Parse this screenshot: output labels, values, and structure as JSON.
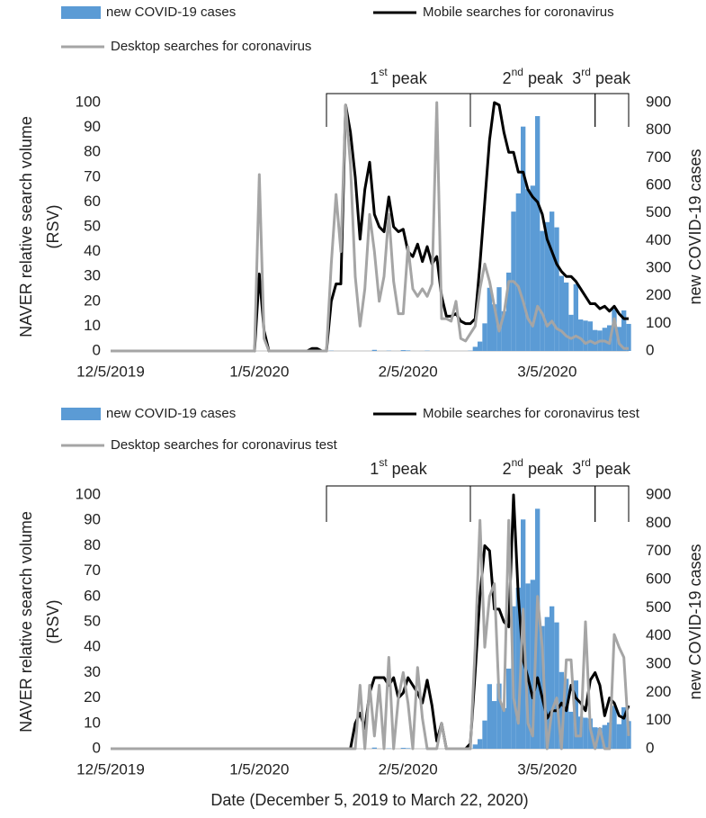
{
  "chart_data": [
    {
      "type": "combo",
      "ylabel": [
        "NAVER relative search volume",
        "(RSV)"
      ],
      "y2label": "new COVID-19 cases",
      "x": [
        "12/5/2019",
        "12/6/2019",
        "12/7/2019",
        "12/8/2019",
        "12/9/2019",
        "12/10/2019",
        "12/11/2019",
        "12/12/2019",
        "12/13/2019",
        "12/14/2019",
        "12/15/2019",
        "12/16/2019",
        "12/17/2019",
        "12/18/2019",
        "12/19/2019",
        "12/20/2019",
        "12/21/2019",
        "12/22/2019",
        "12/23/2019",
        "12/24/2019",
        "12/25/2019",
        "12/26/2019",
        "12/27/2019",
        "12/28/2019",
        "12/29/2019",
        "12/30/2019",
        "12/31/2019",
        "1/1/2020",
        "1/2/2020",
        "1/3/2020",
        "1/4/2020",
        "1/5/2020",
        "1/6/2020",
        "1/7/2020",
        "1/8/2020",
        "1/9/2020",
        "1/10/2020",
        "1/11/2020",
        "1/12/2020",
        "1/13/2020",
        "1/14/2020",
        "1/15/2020",
        "1/16/2020",
        "1/17/2020",
        "1/18/2020",
        "1/19/2020",
        "1/20/2020",
        "1/21/2020",
        "1/22/2020",
        "1/23/2020",
        "1/24/2020",
        "1/25/2020",
        "1/26/2020",
        "1/27/2020",
        "1/28/2020",
        "1/29/2020",
        "1/30/2020",
        "1/31/2020",
        "2/1/2020",
        "2/2/2020",
        "2/3/2020",
        "2/4/2020",
        "2/5/2020",
        "2/6/2020",
        "2/7/2020",
        "2/8/2020",
        "2/9/2020",
        "2/10/2020",
        "2/11/2020",
        "2/12/2020",
        "2/13/2020",
        "2/14/2020",
        "2/15/2020",
        "2/16/2020",
        "2/17/2020",
        "2/18/2020",
        "2/19/2020",
        "2/20/2020",
        "2/21/2020",
        "2/22/2020",
        "2/23/2020",
        "2/24/2020",
        "2/25/2020",
        "2/26/2020",
        "2/27/2020",
        "2/28/2020",
        "2/29/2020",
        "3/1/2020",
        "3/2/2020",
        "3/3/2020",
        "3/4/2020",
        "3/5/2020",
        "3/6/2020",
        "3/7/2020",
        "3/8/2020",
        "3/9/2020",
        "3/10/2020",
        "3/11/2020",
        "3/12/2020",
        "3/13/2020",
        "3/14/2020",
        "3/15/2020",
        "3/16/2020",
        "3/17/2020",
        "3/18/2020",
        "3/19/2020",
        "3/20/2020",
        "3/21/2020",
        "3/22/2020"
      ],
      "xlim": [
        "12/5/2019",
        "3/22/2020"
      ],
      "xticks": [
        "12/5/2019",
        "1/5/2020",
        "2/5/2020",
        "3/5/2020"
      ],
      "ylim": [
        0,
        100
      ],
      "yticks": [
        0,
        10,
        20,
        30,
        40,
        50,
        60,
        70,
        80,
        90,
        100
      ],
      "y2lim": [
        0,
        900
      ],
      "y2ticks": [
        0,
        100,
        200,
        300,
        400,
        500,
        600,
        700,
        800,
        900
      ],
      "series": [
        {
          "name": "new COVID-19 cases",
          "type": "bar",
          "axis": "y2",
          "color": "#5b9bd5",
          "values": [
            0,
            0,
            0,
            0,
            0,
            0,
            0,
            0,
            0,
            0,
            0,
            0,
            0,
            0,
            0,
            0,
            0,
            0,
            0,
            0,
            0,
            0,
            0,
            0,
            0,
            0,
            0,
            0,
            0,
            0,
            0,
            0,
            0,
            0,
            0,
            0,
            0,
            0,
            0,
            0,
            0,
            0,
            0,
            0,
            0,
            0,
            1,
            0,
            0,
            0,
            0,
            0,
            0,
            0,
            0,
            4,
            0,
            0,
            1,
            0,
            0,
            3,
            2,
            0,
            0,
            0,
            1,
            0,
            0,
            0,
            0,
            0,
            0,
            0,
            0,
            1,
            15,
            34,
            100,
            229,
            169,
            231,
            144,
            284,
            505,
            571,
            813,
            586,
            599,
            851,
            435,
            467,
            505,
            448,
            272,
            248,
            131,
            242,
            114,
            110,
            107,
            76,
            74,
            84,
            93,
            152,
            87,
            147,
            98
          ]
        },
        {
          "name": "Mobile searches for coronavirus",
          "type": "line",
          "color": "#000000",
          "values": [
            0,
            0,
            0,
            0,
            0,
            0,
            0,
            0,
            0,
            0,
            0,
            0,
            0,
            0,
            0,
            0,
            0,
            0,
            0,
            0,
            0,
            0,
            0,
            0,
            0,
            0,
            0,
            0,
            0,
            0,
            0,
            31,
            8,
            0,
            0,
            0,
            0,
            0,
            0,
            0,
            0,
            0,
            1,
            1,
            0,
            0,
            20,
            27,
            27,
            99,
            88,
            70,
            45,
            65,
            76,
            55,
            50,
            48,
            62,
            50,
            48,
            49,
            40,
            38,
            43,
            36,
            42,
            35,
            38,
            22,
            14,
            14,
            15,
            12,
            11,
            11,
            13,
            35,
            60,
            85,
            100,
            99,
            88,
            80,
            80,
            72,
            72,
            65,
            62,
            60,
            55,
            45,
            40,
            35,
            32,
            30,
            30,
            28,
            25,
            22,
            19,
            19,
            17,
            18,
            16,
            18,
            15,
            13,
            13
          ]
        },
        {
          "name": "Desktop searches for coronavirus",
          "type": "line",
          "color": "#a5a5a5",
          "values": [
            0,
            0,
            0,
            0,
            0,
            0,
            0,
            0,
            0,
            0,
            0,
            0,
            0,
            0,
            0,
            0,
            0,
            0,
            0,
            0,
            0,
            0,
            0,
            0,
            0,
            0,
            0,
            0,
            0,
            0,
            0,
            71,
            5,
            0,
            0,
            0,
            0,
            0,
            0,
            0,
            0,
            0,
            0,
            0,
            0,
            0,
            35,
            63,
            40,
            99,
            75,
            30,
            10,
            25,
            55,
            40,
            20,
            30,
            55,
            28,
            15,
            15,
            42,
            25,
            22,
            25,
            22,
            27,
            100,
            13,
            13,
            12,
            20,
            5,
            4,
            7,
            10,
            25,
            35,
            28,
            18,
            8,
            15,
            28,
            28,
            26,
            20,
            13,
            10,
            18,
            15,
            10,
            12,
            9,
            8,
            6,
            5,
            6,
            5,
            3,
            4,
            3,
            4,
            4,
            3,
            13,
            3,
            1,
            1
          ]
        }
      ],
      "annotations": [
        {
          "ordinal": "1",
          "suffix": "st",
          "word": "peak",
          "start": "1/19/2020",
          "end": "2/18/2020"
        },
        {
          "ordinal": "2",
          "suffix": "nd",
          "word": "peak",
          "start": "2/18/2020",
          "end": "3/15/2020"
        },
        {
          "ordinal": "3",
          "suffix": "rd",
          "word": "peak",
          "start": "3/15/2020",
          "end": "3/22/2020"
        }
      ]
    },
    {
      "type": "combo",
      "ylabel": [
        "NAVER relative search volume",
        "(RSV)"
      ],
      "y2label": "new COVID-19 cases",
      "xlabel": "Date (December 5, 2019 to March 22, 2020)",
      "x": [
        "12/5/2019",
        "12/6/2019",
        "12/7/2019",
        "12/8/2019",
        "12/9/2019",
        "12/10/2019",
        "12/11/2019",
        "12/12/2019",
        "12/13/2019",
        "12/14/2019",
        "12/15/2019",
        "12/16/2019",
        "12/17/2019",
        "12/18/2019",
        "12/19/2019",
        "12/20/2019",
        "12/21/2019",
        "12/22/2019",
        "12/23/2019",
        "12/24/2019",
        "12/25/2019",
        "12/26/2019",
        "12/27/2019",
        "12/28/2019",
        "12/29/2019",
        "12/30/2019",
        "12/31/2019",
        "1/1/2020",
        "1/2/2020",
        "1/3/2020",
        "1/4/2020",
        "1/5/2020",
        "1/6/2020",
        "1/7/2020",
        "1/8/2020",
        "1/9/2020",
        "1/10/2020",
        "1/11/2020",
        "1/12/2020",
        "1/13/2020",
        "1/14/2020",
        "1/15/2020",
        "1/16/2020",
        "1/17/2020",
        "1/18/2020",
        "1/19/2020",
        "1/20/2020",
        "1/21/2020",
        "1/22/2020",
        "1/23/2020",
        "1/24/2020",
        "1/25/2020",
        "1/26/2020",
        "1/27/2020",
        "1/28/2020",
        "1/29/2020",
        "1/30/2020",
        "1/31/2020",
        "2/1/2020",
        "2/2/2020",
        "2/3/2020",
        "2/4/2020",
        "2/5/2020",
        "2/6/2020",
        "2/7/2020",
        "2/8/2020",
        "2/9/2020",
        "2/10/2020",
        "2/11/2020",
        "2/12/2020",
        "2/13/2020",
        "2/14/2020",
        "2/15/2020",
        "2/16/2020",
        "2/17/2020",
        "2/18/2020",
        "2/19/2020",
        "2/20/2020",
        "2/21/2020",
        "2/22/2020",
        "2/23/2020",
        "2/24/2020",
        "2/25/2020",
        "2/26/2020",
        "2/27/2020",
        "2/28/2020",
        "2/29/2020",
        "3/1/2020",
        "3/2/2020",
        "3/3/2020",
        "3/4/2020",
        "3/5/2020",
        "3/6/2020",
        "3/7/2020",
        "3/8/2020",
        "3/9/2020",
        "3/10/2020",
        "3/11/2020",
        "3/12/2020",
        "3/13/2020",
        "3/14/2020",
        "3/15/2020",
        "3/16/2020",
        "3/17/2020",
        "3/18/2020",
        "3/19/2020",
        "3/20/2020",
        "3/21/2020",
        "3/22/2020"
      ],
      "xlim": [
        "12/5/2019",
        "3/22/2020"
      ],
      "xticks": [
        "12/5/2019",
        "1/5/2020",
        "2/5/2020",
        "3/5/2020"
      ],
      "ylim": [
        0,
        100
      ],
      "yticks": [
        0,
        10,
        20,
        30,
        40,
        50,
        60,
        70,
        80,
        90,
        100
      ],
      "y2lim": [
        0,
        900
      ],
      "y2ticks": [
        0,
        100,
        200,
        300,
        400,
        500,
        600,
        700,
        800,
        900
      ],
      "series": [
        {
          "name": "new COVID-19 cases",
          "type": "bar",
          "axis": "y2",
          "color": "#5b9bd5",
          "values": [
            0,
            0,
            0,
            0,
            0,
            0,
            0,
            0,
            0,
            0,
            0,
            0,
            0,
            0,
            0,
            0,
            0,
            0,
            0,
            0,
            0,
            0,
            0,
            0,
            0,
            0,
            0,
            0,
            0,
            0,
            0,
            0,
            0,
            0,
            0,
            0,
            0,
            0,
            0,
            0,
            0,
            0,
            0,
            0,
            0,
            0,
            1,
            0,
            0,
            0,
            0,
            0,
            0,
            0,
            0,
            4,
            0,
            0,
            1,
            0,
            0,
            3,
            2,
            0,
            0,
            0,
            1,
            0,
            0,
            0,
            0,
            0,
            0,
            0,
            0,
            1,
            15,
            34,
            100,
            229,
            169,
            231,
            144,
            284,
            505,
            571,
            813,
            586,
            599,
            851,
            435,
            467,
            505,
            448,
            272,
            248,
            131,
            242,
            114,
            110,
            107,
            76,
            74,
            84,
            93,
            152,
            87,
            147,
            98
          ]
        },
        {
          "name": "Mobile searches for coronavirus test",
          "type": "line",
          "color": "#000000",
          "values": [
            0,
            0,
            0,
            0,
            0,
            0,
            0,
            0,
            0,
            0,
            0,
            0,
            0,
            0,
            0,
            0,
            0,
            0,
            0,
            0,
            0,
            0,
            0,
            0,
            0,
            0,
            0,
            0,
            0,
            0,
            0,
            0,
            0,
            0,
            0,
            0,
            0,
            0,
            0,
            0,
            0,
            0,
            0,
            0,
            0,
            0,
            0,
            0,
            0,
            0,
            0,
            10,
            14,
            8,
            22,
            28,
            28,
            28,
            25,
            28,
            20,
            22,
            28,
            25,
            22,
            18,
            27,
            17,
            3,
            10,
            0,
            0,
            0,
            0,
            0,
            2,
            30,
            60,
            80,
            78,
            55,
            55,
            50,
            48,
            100,
            60,
            35,
            28,
            20,
            28,
            20,
            12,
            15,
            15,
            18,
            15,
            25,
            20,
            18,
            15,
            27,
            30,
            25,
            13,
            20,
            18,
            13,
            12,
            17
          ]
        },
        {
          "name": "Desktop searches for coronavirus test",
          "type": "line",
          "color": "#a5a5a5",
          "values": [
            0,
            0,
            0,
            0,
            0,
            0,
            0,
            0,
            0,
            0,
            0,
            0,
            0,
            0,
            0,
            0,
            0,
            0,
            0,
            0,
            0,
            0,
            0,
            0,
            0,
            0,
            0,
            0,
            0,
            0,
            0,
            0,
            0,
            0,
            0,
            0,
            0,
            0,
            0,
            0,
            0,
            0,
            0,
            0,
            0,
            0,
            0,
            0,
            0,
            0,
            0,
            0,
            25,
            0,
            25,
            5,
            25,
            0,
            36,
            0,
            20,
            30,
            18,
            0,
            32,
            12,
            0,
            0,
            0,
            10,
            0,
            0,
            0,
            0,
            0,
            0,
            40,
            90,
            40,
            60,
            65,
            20,
            15,
            90,
            20,
            10,
            55,
            10,
            5,
            60,
            40,
            0,
            15,
            20,
            0,
            35,
            35,
            5,
            5,
            50,
            8,
            0,
            8,
            0,
            0,
            45,
            40,
            36,
            5
          ]
        }
      ],
      "annotations": [
        {
          "ordinal": "1",
          "suffix": "st",
          "word": "peak",
          "start": "1/19/2020",
          "end": "2/18/2020"
        },
        {
          "ordinal": "2",
          "suffix": "nd",
          "word": "peak",
          "start": "2/18/2020",
          "end": "3/15/2020"
        },
        {
          "ordinal": "3",
          "suffix": "rd",
          "word": "peak",
          "start": "3/15/2020",
          "end": "3/22/2020"
        }
      ]
    }
  ]
}
